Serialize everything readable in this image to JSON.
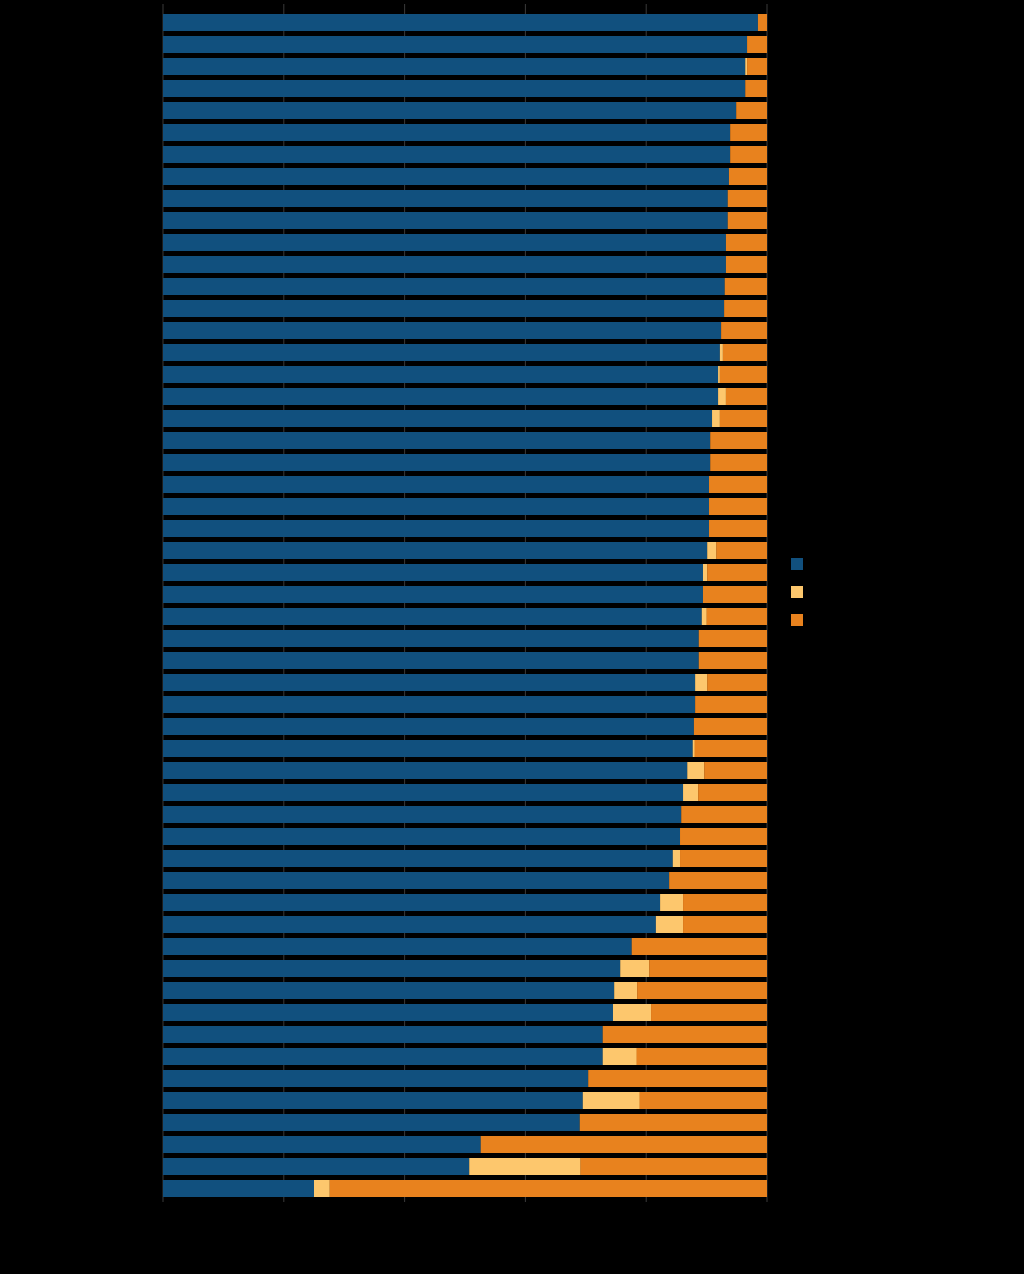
{
  "chart_data": {
    "type": "stacked-barh",
    "categories": [
      null,
      null,
      null,
      null,
      null,
      null,
      null,
      null,
      null,
      null,
      null,
      null,
      null,
      null,
      null,
      null,
      null,
      null,
      null,
      null,
      null,
      null,
      null,
      null,
      null,
      null,
      null,
      null,
      null,
      null,
      null,
      null,
      null,
      null,
      null,
      null,
      null,
      null,
      null,
      null,
      null,
      null,
      null,
      null,
      null,
      null,
      null,
      null,
      null,
      null,
      null,
      null,
      null,
      null
    ],
    "series": [
      {
        "color": "#11507e",
        "values": [
          98.5,
          96.7,
          96.4,
          96.4,
          94.9,
          93.9,
          93.9,
          93.7,
          93.5,
          93.5,
          93.2,
          93.2,
          93.0,
          92.9,
          92.4,
          92.2,
          91.9,
          91.9,
          90.9,
          90.6,
          90.6,
          90.4,
          90.4,
          90.4,
          90.1,
          89.4,
          89.4,
          89.2,
          88.7,
          88.7,
          88.1,
          88.1,
          87.9,
          87.7,
          86.8,
          86.1,
          85.8,
          85.6,
          84.4,
          83.8,
          82.3,
          81.6,
          77.6,
          75.7,
          74.7,
          74.5,
          72.8,
          72.8,
          70.4,
          69.5,
          69.0,
          52.6,
          50.7,
          25.0
        ]
      },
      {
        "color": "#fdc76d",
        "values": [
          0,
          0,
          0.3,
          0,
          0,
          0,
          0,
          0,
          0,
          0,
          0,
          0,
          0,
          0,
          0,
          0.5,
          0.3,
          1.3,
          1.3,
          0,
          0,
          0,
          0,
          0,
          1.5,
          0.7,
          0,
          0.8,
          0,
          0,
          2.0,
          0,
          0,
          0.3,
          2.8,
          2.5,
          0,
          0,
          1.2,
          0,
          3.8,
          4.5,
          0,
          4.8,
          3.8,
          6.3,
          0,
          5.6,
          0,
          9.4,
          0,
          0,
          18.4,
          2.6
        ]
      },
      {
        "color": "#e8821e",
        "values": [
          1.5,
          3.3,
          3.3,
          3.6,
          5.1,
          6.1,
          6.1,
          6.3,
          6.5,
          6.5,
          6.8,
          6.8,
          7.0,
          7.1,
          7.6,
          7.3,
          7.8,
          6.8,
          7.8,
          9.4,
          9.4,
          9.6,
          9.6,
          9.6,
          8.4,
          9.9,
          10.6,
          10.0,
          11.3,
          11.3,
          9.9,
          11.9,
          12.1,
          12.0,
          10.4,
          11.4,
          14.2,
          14.4,
          14.4,
          16.2,
          13.9,
          13.9,
          22.4,
          19.5,
          21.5,
          19.2,
          27.2,
          21.6,
          29.6,
          21.1,
          31.0,
          47.4,
          30.9,
          72.4
        ]
      }
    ],
    "xlim": [
      0,
      100
    ],
    "xticks": [
      0,
      20,
      40,
      60,
      80,
      100
    ],
    "grid": true
  }
}
